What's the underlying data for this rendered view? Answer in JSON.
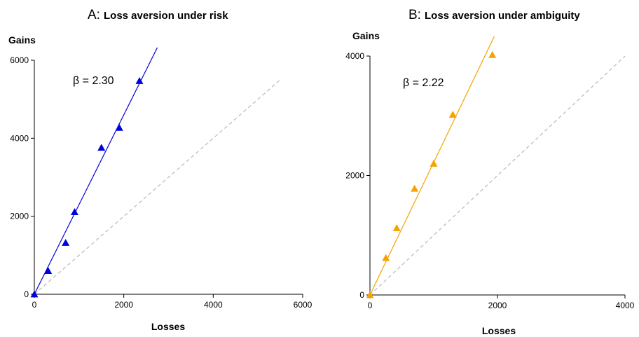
{
  "chart_data": [
    {
      "type": "scatter",
      "letter": "A:",
      "title": "Loss aversion under risk",
      "xlabel": "Losses",
      "ylabel": "Gains",
      "xlim": [
        0,
        6000
      ],
      "ylim": [
        0,
        6000
      ],
      "xticks": [
        0,
        2000,
        4000,
        6000
      ],
      "yticks": [
        0,
        2000,
        4000,
        6000
      ],
      "annotation": "β = 2.30",
      "slope": 2.3,
      "fit_line_end_x": 2750,
      "identity_line_end": 5500,
      "color": "#0000dd",
      "grid": false,
      "legend": "none",
      "points": [
        {
          "x": 0,
          "y": 0
        },
        {
          "x": 310,
          "y": 600
        },
        {
          "x": 700,
          "y": 1320
        },
        {
          "x": 900,
          "y": 2110
        },
        {
          "x": 1500,
          "y": 3760
        },
        {
          "x": 1900,
          "y": 4270
        },
        {
          "x": 2350,
          "y": 5470
        }
      ]
    },
    {
      "type": "scatter",
      "letter": "B:",
      "title": "Loss aversion under ambiguity",
      "xlabel": "Losses",
      "ylabel": "Gains",
      "xlim": [
        0,
        4000
      ],
      "ylim": [
        0,
        4000
      ],
      "xticks": [
        0,
        2000,
        4000
      ],
      "yticks": [
        0,
        2000,
        4000
      ],
      "annotation": "β = 2.22",
      "slope": 2.22,
      "fit_line_end_x": 1950,
      "identity_line_end": 4000,
      "color": "#f5a300",
      "grid": false,
      "legend": "none",
      "points": [
        {
          "x": 0,
          "y": 0
        },
        {
          "x": 250,
          "y": 620
        },
        {
          "x": 420,
          "y": 1120
        },
        {
          "x": 700,
          "y": 1780
        },
        {
          "x": 1000,
          "y": 2200
        },
        {
          "x": 1300,
          "y": 3020
        },
        {
          "x": 1920,
          "y": 4020
        }
      ]
    }
  ]
}
